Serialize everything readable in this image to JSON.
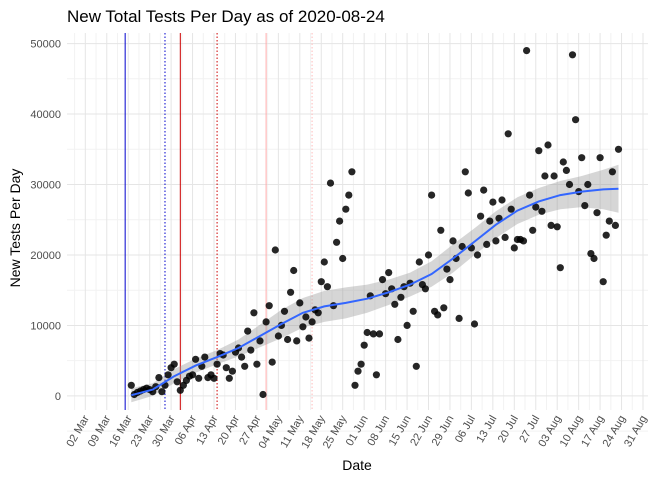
{
  "chart_data": {
    "type": "scatter",
    "title": "New Total Tests Per Day as of 2020-08-24",
    "xlabel": "Date",
    "ylabel": "New Tests Per Day",
    "x_start_date": "2020-02-26",
    "xlim": [
      "2020-02-26",
      "2020-08-31"
    ],
    "ylim": [
      -2000,
      51500
    ],
    "x_tick_labels": [
      "02 Mar",
      "09 Mar",
      "16 Mar",
      "23 Mar",
      "30 Mar",
      "06 Apr",
      "13 Apr",
      "20 Apr",
      "27 Apr",
      "04 May",
      "11 May",
      "18 May",
      "25 May",
      "01 Jun",
      "08 Jun",
      "15 Jun",
      "22 Jun",
      "29 Jun",
      "06 Jul",
      "13 Jul",
      "20 Jul",
      "27 Jul",
      "03 Aug",
      "10 Aug",
      "17 Aug",
      "24 Aug",
      "31 Aug"
    ],
    "y_ticks": [
      0,
      10000,
      20000,
      30000,
      40000,
      50000
    ],
    "grid": true,
    "vertical_lines": [
      {
        "date": "2020-03-15",
        "color": "#0000cc",
        "style": "solid"
      },
      {
        "date": "2020-03-28",
        "color": "#0000cc",
        "style": "dotted"
      },
      {
        "date": "2020-04-02",
        "color": "#cc0000",
        "style": "solid"
      },
      {
        "date": "2020-04-14",
        "color": "#cc0000",
        "style": "dotted"
      },
      {
        "date": "2020-04-30",
        "color": "#ffaaaa",
        "style": "solid"
      },
      {
        "date": "2020-05-15",
        "color": "#ffbbbb",
        "style": "dotted"
      }
    ],
    "points": [
      [
        "2020-03-17",
        1500
      ],
      [
        "2020-03-18",
        200
      ],
      [
        "2020-03-19",
        500
      ],
      [
        "2020-03-20",
        700
      ],
      [
        "2020-03-21",
        900
      ],
      [
        "2020-03-22",
        1100
      ],
      [
        "2020-03-23",
        900
      ],
      [
        "2020-03-24",
        600
      ],
      [
        "2020-03-25",
        1300
      ],
      [
        "2020-03-26",
        2600
      ],
      [
        "2020-03-27",
        600
      ],
      [
        "2020-03-28",
        1500
      ],
      [
        "2020-03-29",
        3000
      ],
      [
        "2020-03-30",
        4000
      ],
      [
        "2020-03-31",
        4500
      ],
      [
        "2020-04-01",
        2000
      ],
      [
        "2020-04-02",
        800
      ],
      [
        "2020-04-03",
        1500
      ],
      [
        "2020-04-04",
        2200
      ],
      [
        "2020-04-05",
        2800
      ],
      [
        "2020-04-06",
        3000
      ],
      [
        "2020-04-07",
        5200
      ],
      [
        "2020-04-08",
        2500
      ],
      [
        "2020-04-09",
        4200
      ],
      [
        "2020-04-10",
        5500
      ],
      [
        "2020-04-11",
        2600
      ],
      [
        "2020-04-12",
        3000
      ],
      [
        "2020-04-13",
        2500
      ],
      [
        "2020-04-14",
        4500
      ],
      [
        "2020-04-15",
        6000
      ],
      [
        "2020-04-16",
        5800
      ],
      [
        "2020-04-17",
        4000
      ],
      [
        "2020-04-18",
        2500
      ],
      [
        "2020-04-19",
        3500
      ],
      [
        "2020-04-20",
        6200
      ],
      [
        "2020-04-21",
        6800
      ],
      [
        "2020-04-22",
        5500
      ],
      [
        "2020-04-23",
        4200
      ],
      [
        "2020-04-24",
        9200
      ],
      [
        "2020-04-25",
        6500
      ],
      [
        "2020-04-26",
        11800
      ],
      [
        "2020-04-27",
        4500
      ],
      [
        "2020-04-28",
        7800
      ],
      [
        "2020-04-29",
        200
      ],
      [
        "2020-04-30",
        10500
      ],
      [
        "2020-05-01",
        12800
      ],
      [
        "2020-05-02",
        4800
      ],
      [
        "2020-05-03",
        20700
      ],
      [
        "2020-05-04",
        8500
      ],
      [
        "2020-05-05",
        10000
      ],
      [
        "2020-05-06",
        12000
      ],
      [
        "2020-05-07",
        8000
      ],
      [
        "2020-05-08",
        14700
      ],
      [
        "2020-05-09",
        17800
      ],
      [
        "2020-05-10",
        7800
      ],
      [
        "2020-05-11",
        13200
      ],
      [
        "2020-05-12",
        9800
      ],
      [
        "2020-05-13",
        11200
      ],
      [
        "2020-05-14",
        8200
      ],
      [
        "2020-05-15",
        10500
      ],
      [
        "2020-05-16",
        12200
      ],
      [
        "2020-05-17",
        11800
      ],
      [
        "2020-05-18",
        16200
      ],
      [
        "2020-05-19",
        19000
      ],
      [
        "2020-05-20",
        15500
      ],
      [
        "2020-05-21",
        30200
      ],
      [
        "2020-05-22",
        12800
      ],
      [
        "2020-05-23",
        21800
      ],
      [
        "2020-05-24",
        24800
      ],
      [
        "2020-05-25",
        19500
      ],
      [
        "2020-05-26",
        26500
      ],
      [
        "2020-05-27",
        28500
      ],
      [
        "2020-05-28",
        31800
      ],
      [
        "2020-05-29",
        1500
      ],
      [
        "2020-05-30",
        3500
      ],
      [
        "2020-05-31",
        4500
      ],
      [
        "2020-06-01",
        7200
      ],
      [
        "2020-06-02",
        9000
      ],
      [
        "2020-06-03",
        14200
      ],
      [
        "2020-06-04",
        8800
      ],
      [
        "2020-06-05",
        3000
      ],
      [
        "2020-06-06",
        8800
      ],
      [
        "2020-06-07",
        16500
      ],
      [
        "2020-06-08",
        14500
      ],
      [
        "2020-06-09",
        17500
      ],
      [
        "2020-06-10",
        15200
      ],
      [
        "2020-06-11",
        13000
      ],
      [
        "2020-06-12",
        8000
      ],
      [
        "2020-06-13",
        14000
      ],
      [
        "2020-06-14",
        15500
      ],
      [
        "2020-06-15",
        10000
      ],
      [
        "2020-06-16",
        16000
      ],
      [
        "2020-06-17",
        12000
      ],
      [
        "2020-06-18",
        4200
      ],
      [
        "2020-06-19",
        19000
      ],
      [
        "2020-06-20",
        15800
      ],
      [
        "2020-06-21",
        15200
      ],
      [
        "2020-06-22",
        20000
      ],
      [
        "2020-06-23",
        28500
      ],
      [
        "2020-06-24",
        12000
      ],
      [
        "2020-06-25",
        11500
      ],
      [
        "2020-06-26",
        23500
      ],
      [
        "2020-06-27",
        12500
      ],
      [
        "2020-06-28",
        18000
      ],
      [
        "2020-06-29",
        16500
      ],
      [
        "2020-06-30",
        22000
      ],
      [
        "2020-07-01",
        19500
      ],
      [
        "2020-07-02",
        11000
      ],
      [
        "2020-07-03",
        21200
      ],
      [
        "2020-07-04",
        31800
      ],
      [
        "2020-07-05",
        28800
      ],
      [
        "2020-07-06",
        21000
      ],
      [
        "2020-07-07",
        10200
      ],
      [
        "2020-07-08",
        20000
      ],
      [
        "2020-07-09",
        25500
      ],
      [
        "2020-07-10",
        29200
      ],
      [
        "2020-07-11",
        21500
      ],
      [
        "2020-07-12",
        24800
      ],
      [
        "2020-07-13",
        27500
      ],
      [
        "2020-07-14",
        22000
      ],
      [
        "2020-07-15",
        25200
      ],
      [
        "2020-07-16",
        27800
      ],
      [
        "2020-07-17",
        22500
      ],
      [
        "2020-07-18",
        37200
      ],
      [
        "2020-07-19",
        26500
      ],
      [
        "2020-07-20",
        21000
      ],
      [
        "2020-07-21",
        22200
      ],
      [
        "2020-07-22",
        22200
      ],
      [
        "2020-07-23",
        22000
      ],
      [
        "2020-07-24",
        49000
      ],
      [
        "2020-07-25",
        28500
      ],
      [
        "2020-07-26",
        23500
      ],
      [
        "2020-07-27",
        26800
      ],
      [
        "2020-07-28",
        34800
      ],
      [
        "2020-07-29",
        26200
      ],
      [
        "2020-07-30",
        31200
      ],
      [
        "2020-07-31",
        35600
      ],
      [
        "2020-08-01",
        24200
      ],
      [
        "2020-08-02",
        31200
      ],
      [
        "2020-08-03",
        24000
      ],
      [
        "2020-08-04",
        18200
      ],
      [
        "2020-08-05",
        33200
      ],
      [
        "2020-08-06",
        32000
      ],
      [
        "2020-08-07",
        30000
      ],
      [
        "2020-08-08",
        48400
      ],
      [
        "2020-08-09",
        39200
      ],
      [
        "2020-08-10",
        29000
      ],
      [
        "2020-08-11",
        33800
      ],
      [
        "2020-08-12",
        27000
      ],
      [
        "2020-08-13",
        30000
      ],
      [
        "2020-08-14",
        20200
      ],
      [
        "2020-08-15",
        19500
      ],
      [
        "2020-08-16",
        26000
      ],
      [
        "2020-08-17",
        33800
      ],
      [
        "2020-08-18",
        16200
      ],
      [
        "2020-08-19",
        22800
      ],
      [
        "2020-08-20",
        24800
      ],
      [
        "2020-08-21",
        31800
      ],
      [
        "2020-08-22",
        24200
      ],
      [
        "2020-08-23",
        35000
      ]
    ],
    "smooth_line": {
      "color": "#3366ff",
      "band_color": "#999999",
      "points": [
        [
          "2020-03-17",
          100,
          -900,
          1100
        ],
        [
          "2020-03-24",
          900,
          0,
          1800
        ],
        [
          "2020-03-31",
          2800,
          1800,
          3800
        ],
        [
          "2020-04-07",
          4300,
          3300,
          5300
        ],
        [
          "2020-04-14",
          5500,
          4500,
          6500
        ],
        [
          "2020-04-21",
          6800,
          5600,
          8000
        ],
        [
          "2020-04-28",
          8500,
          6900,
          10100
        ],
        [
          "2020-05-05",
          10200,
          8200,
          12200
        ],
        [
          "2020-05-12",
          11800,
          9700,
          13900
        ],
        [
          "2020-05-19",
          12700,
          10500,
          14900
        ],
        [
          "2020-05-26",
          13200,
          11000,
          15400
        ],
        [
          "2020-06-02",
          13800,
          11800,
          15800
        ],
        [
          "2020-06-09",
          14700,
          12900,
          16500
        ],
        [
          "2020-06-16",
          15800,
          14100,
          17500
        ],
        [
          "2020-06-23",
          17300,
          15500,
          19100
        ],
        [
          "2020-06-30",
          19500,
          17500,
          21500
        ],
        [
          "2020-07-07",
          21900,
          20000,
          23800
        ],
        [
          "2020-07-14",
          24300,
          22400,
          26200
        ],
        [
          "2020-07-21",
          26300,
          24400,
          28200
        ],
        [
          "2020-07-28",
          27600,
          25700,
          29500
        ],
        [
          "2020-08-04",
          28500,
          26500,
          30500
        ],
        [
          "2020-08-11",
          29000,
          26800,
          31200
        ],
        [
          "2020-08-18",
          29300,
          26500,
          32100
        ],
        [
          "2020-08-23",
          29400,
          26000,
          32800
        ]
      ]
    }
  }
}
